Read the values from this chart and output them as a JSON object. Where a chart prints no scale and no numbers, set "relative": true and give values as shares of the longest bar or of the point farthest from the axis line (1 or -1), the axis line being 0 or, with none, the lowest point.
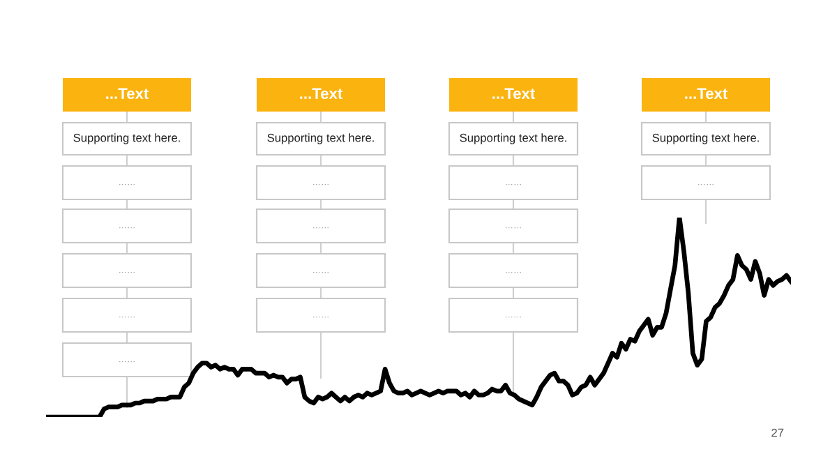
{
  "chart_data": {
    "type": "line",
    "relative": true,
    "categories": [
      null,
      null,
      null,
      null,
      null,
      null,
      null,
      null,
      null,
      null,
      null,
      null,
      null,
      null,
      null,
      null,
      null,
      null,
      null,
      null,
      null,
      null,
      null,
      null,
      null,
      null,
      null,
      null,
      null,
      null,
      null,
      null,
      null,
      null,
      null,
      null,
      null,
      null,
      null,
      null,
      null,
      null,
      null,
      null,
      null,
      null,
      null,
      null,
      null,
      null,
      null,
      null,
      null,
      null,
      null,
      null,
      null,
      null,
      null,
      null,
      null,
      null,
      null,
      null,
      null,
      null,
      null,
      null,
      null,
      null,
      null,
      null,
      null,
      null,
      null,
      null,
      null,
      null,
      null,
      null,
      null,
      null,
      null,
      null,
      null,
      null,
      null,
      null,
      null,
      null,
      null,
      null,
      null,
      null,
      null,
      null,
      null,
      null,
      null,
      null,
      null,
      null,
      null,
      null,
      null,
      null,
      null,
      null,
      null,
      null,
      null,
      null,
      null,
      null,
      null,
      null,
      null,
      null,
      null,
      null,
      null,
      null,
      null,
      null,
      null,
      null,
      null,
      null,
      null,
      null,
      null,
      null,
      null,
      null,
      null,
      null,
      null,
      null,
      null,
      null,
      null,
      null,
      null,
      null,
      null,
      null,
      null,
      null,
      null,
      null,
      null,
      null,
      null,
      null,
      null,
      null,
      null,
      null,
      null,
      null,
      null,
      null,
      null,
      null,
      null,
      null,
      null,
      null
    ],
    "series": [
      {
        "color": "#000000",
        "values": [
          0,
          0,
          0,
          0,
          0,
          0,
          0,
          0,
          0,
          0,
          0,
          0,
          0,
          0.04,
          0.05,
          0.05,
          0.05,
          0.06,
          0.06,
          0.06,
          0.07,
          0.07,
          0.08,
          0.08,
          0.08,
          0.09,
          0.09,
          0.09,
          0.1,
          0.1,
          0.1,
          0.15,
          0.17,
          0.22,
          0.25,
          0.27,
          0.27,
          0.25,
          0.26,
          0.24,
          0.25,
          0.24,
          0.24,
          0.21,
          0.24,
          0.24,
          0.24,
          0.22,
          0.22,
          0.22,
          0.2,
          0.21,
          0.2,
          0.2,
          0.17,
          0.19,
          0.19,
          0.2,
          0.1,
          0.08,
          0.07,
          0.1,
          0.09,
          0.1,
          0.12,
          0.1,
          0.08,
          0.1,
          0.08,
          0.1,
          0.11,
          0.1,
          0.12,
          0.11,
          0.12,
          0.13,
          0.24,
          0.17,
          0.13,
          0.12,
          0.12,
          0.13,
          0.11,
          0.12,
          0.13,
          0.12,
          0.11,
          0.12,
          0.13,
          0.12,
          0.13,
          0.13,
          0.13,
          0.11,
          0.12,
          0.1,
          0.13,
          0.11,
          0.11,
          0.12,
          0.14,
          0.13,
          0.13,
          0.16,
          0.12,
          0.11,
          0.09,
          0.08,
          0.07,
          0.06,
          0.1,
          0.15,
          0.18,
          0.21,
          0.22,
          0.18,
          0.18,
          0.16,
          0.11,
          0.12,
          0.15,
          0.16,
          0.2,
          0.16,
          0.19,
          0.22,
          0.27,
          0.32,
          0.3,
          0.37,
          0.34,
          0.39,
          0.38,
          0.43,
          0.46,
          0.49,
          0.41,
          0.45,
          0.45,
          0.52,
          0.64,
          0.76,
          1,
          0.83,
          0.62,
          0.32,
          0.26,
          0.29,
          0.48,
          0.5,
          0.55,
          0.57,
          0.61,
          0.66,
          0.69,
          0.81,
          0.76,
          0.74,
          0.69,
          0.78,
          0.72,
          0.61,
          0.69,
          0.66,
          0.68,
          0.69,
          0.71,
          0.68
        ]
      }
    ],
    "line_style": "solid",
    "annotations": [
      "...Text",
      "Supporting text here.",
      "……",
      "……",
      "……",
      "……",
      "……",
      "...Text",
      "Supporting text here.",
      "……",
      "……",
      "……",
      "……",
      "...Text",
      "Supporting text here.",
      "……",
      "……",
      "……",
      "……",
      "...Text",
      "Supporting text here.",
      "……",
      "27"
    ]
  }
}
